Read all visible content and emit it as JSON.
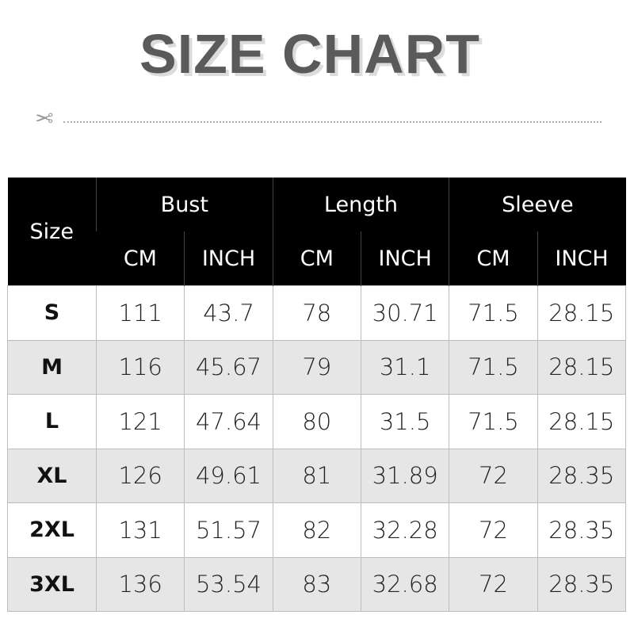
{
  "title": "SIZE CHART",
  "icons": {
    "cut": "scissors-icon"
  },
  "table": {
    "size_header": "Size",
    "groups": [
      "Bust",
      "Length",
      "Sleeve"
    ],
    "units": [
      "CM",
      "INCH",
      "CM",
      "INCH",
      "CM",
      "INCH"
    ],
    "rows": [
      [
        "S",
        "111",
        "43.7",
        "78",
        "30.71",
        "71.5",
        "28.15"
      ],
      [
        "M",
        "116",
        "45.67",
        "79",
        "31.1",
        "71.5",
        "28.15"
      ],
      [
        "L",
        "121",
        "47.64",
        "80",
        "31.5",
        "71.5",
        "28.15"
      ],
      [
        "XL",
        "126",
        "49.61",
        "81",
        "31.89",
        "72",
        "28.35"
      ],
      [
        "2XL",
        "131",
        "51.57",
        "82",
        "32.28",
        "72",
        "28.35"
      ],
      [
        "3XL",
        "136",
        "53.54",
        "83",
        "32.68",
        "72",
        "28.35"
      ]
    ]
  }
}
